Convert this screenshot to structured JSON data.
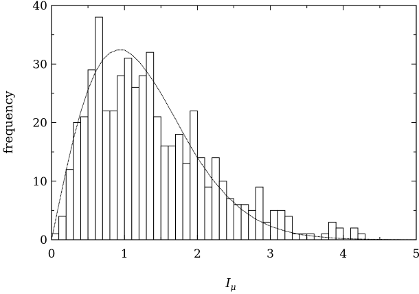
{
  "chart_data": {
    "type": "bar",
    "xlabel": "I",
    "xlabel_sub": "μ",
    "ylabel": "frequency",
    "xlim": [
      0,
      5
    ],
    "ylim": [
      0,
      40
    ],
    "grid": false,
    "x_ticks": [
      0,
      1,
      2,
      3,
      4,
      5
    ],
    "y_ticks": [
      0,
      10,
      20,
      30,
      40
    ],
    "bin_width": 0.1,
    "bin_starts": [
      0.0,
      0.1,
      0.2,
      0.3,
      0.4,
      0.5,
      0.6,
      0.7,
      0.8,
      0.9,
      1.0,
      1.1,
      1.2,
      1.3,
      1.4,
      1.5,
      1.6,
      1.7,
      1.8,
      1.9,
      2.0,
      2.1,
      2.2,
      2.3,
      2.4,
      2.5,
      2.6,
      2.7,
      2.8,
      2.9,
      3.0,
      3.1,
      3.2,
      3.3,
      3.4,
      3.5,
      3.6,
      3.7,
      3.8,
      3.9,
      4.0,
      4.1,
      4.2,
      4.3,
      4.4,
      4.5,
      4.6,
      4.7,
      4.8,
      4.9
    ],
    "counts": [
      1,
      4,
      12,
      20,
      21,
      29,
      38,
      22,
      22,
      28,
      31,
      26,
      28,
      32,
      21,
      16,
      16,
      18,
      13,
      22,
      14,
      9,
      14,
      10,
      7,
      6,
      6,
      5,
      9,
      3,
      5,
      5,
      4,
      1,
      1,
      1,
      0,
      1,
      3,
      2,
      0,
      2,
      1,
      0,
      0,
      0,
      0,
      0,
      0,
      0
    ],
    "fit_curve": {
      "type": "line",
      "description": "fitted distribution",
      "x": [
        0.0,
        0.1,
        0.2,
        0.3,
        0.4,
        0.5,
        0.6,
        0.7,
        0.8,
        0.9,
        1.0,
        1.1,
        1.2,
        1.3,
        1.4,
        1.5,
        1.6,
        1.7,
        1.8,
        1.9,
        2.0,
        2.2,
        2.4,
        2.6,
        2.8,
        3.0,
        3.2,
        3.4,
        3.6,
        3.8,
        4.0,
        4.2,
        4.4,
        4.6,
        4.8,
        5.0
      ],
      "y": [
        0.0,
        6.0,
        11.8,
        17.2,
        21.8,
        25.6,
        28.6,
        30.7,
        31.9,
        32.4,
        32.4,
        31.6,
        30.4,
        28.8,
        27.0,
        25.0,
        22.8,
        20.6,
        18.3,
        16.1,
        14.0,
        10.4,
        7.5,
        5.2,
        3.5,
        2.3,
        1.5,
        0.9,
        0.6,
        0.35,
        0.2,
        0.12,
        0.07,
        0.04,
        0.02,
        0.01
      ]
    }
  }
}
